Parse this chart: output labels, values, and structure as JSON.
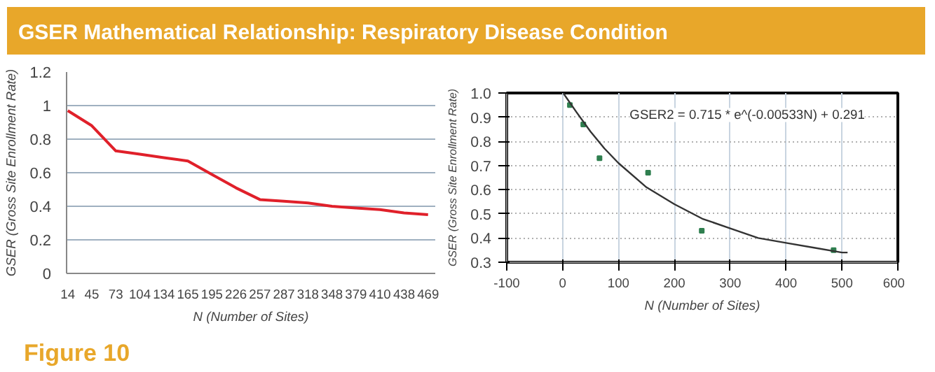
{
  "chart_data": [
    {
      "type": "line",
      "title": "GSER Mathematical Relationship: Respiratory Disease Condition",
      "annotations": [
        "Figure 10"
      ],
      "xlabel": "N (Number of Sites)",
      "ylabel": "GSER (Gross Site Enrollment Rate)",
      "categories": [
        "14",
        "45",
        "73",
        "104",
        "134",
        "165",
        "195",
        "226",
        "257",
        "287",
        "318",
        "348",
        "379",
        "410",
        "438",
        "469"
      ],
      "series": [
        {
          "color": "#e0202a",
          "values": [
            0.97,
            0.88,
            0.73,
            0.71,
            0.69,
            0.67,
            0.59,
            0.51,
            0.44,
            0.43,
            0.42,
            0.4,
            0.39,
            0.38,
            0.36,
            0.35
          ]
        }
      ],
      "ylim": [
        0,
        1.2
      ],
      "yticks": [
        0,
        0.2,
        0.4,
        0.6,
        0.8,
        1,
        1.2
      ],
      "grid": "y"
    },
    {
      "type": "scatter",
      "xlabel": "N (Number of Sites)",
      "ylabel": "GSER (Gross Site Enrollment Rate)",
      "annotations": [
        "GSER2 = 0.715 * e^(-0.00533N) + 0.291"
      ],
      "series": [
        {
          "type": "scatter",
          "color": "#2f7f4f",
          "x": [
            13,
            37,
            66,
            153,
            249,
            485
          ],
          "values": [
            0.95,
            0.87,
            0.73,
            0.67,
            0.43,
            0.35
          ]
        },
        {
          "type": "line",
          "color": "#333333",
          "x": [
            1,
            25,
            50,
            75,
            100,
            150,
            200,
            250,
            300,
            350,
            400,
            450,
            500,
            510
          ],
          "values": [
            1.0,
            0.92,
            0.84,
            0.77,
            0.71,
            0.61,
            0.54,
            0.48,
            0.44,
            0.4,
            0.38,
            0.36,
            0.34,
            0.34
          ]
        }
      ],
      "xlim": [
        -100,
        600
      ],
      "xticks": [
        -100,
        0,
        100,
        200,
        300,
        400,
        500,
        600
      ],
      "ylim": [
        0.3,
        1.0
      ],
      "yticks": [
        {
          "value": 0.3,
          "label": "0.3"
        },
        {
          "value": 0.4,
          "label": "0.4"
        },
        {
          "value": 0.5,
          "label": "0.5"
        },
        {
          "value": 0.6,
          "label": "0.6"
        },
        {
          "value": 0.7,
          "label": "0.7"
        },
        {
          "value": 0.8,
          "label": "0.8"
        },
        {
          "value": 0.9,
          "label": "0.9"
        },
        {
          "value": 1.0,
          "label": "1.0"
        }
      ],
      "grid": true
    }
  ]
}
